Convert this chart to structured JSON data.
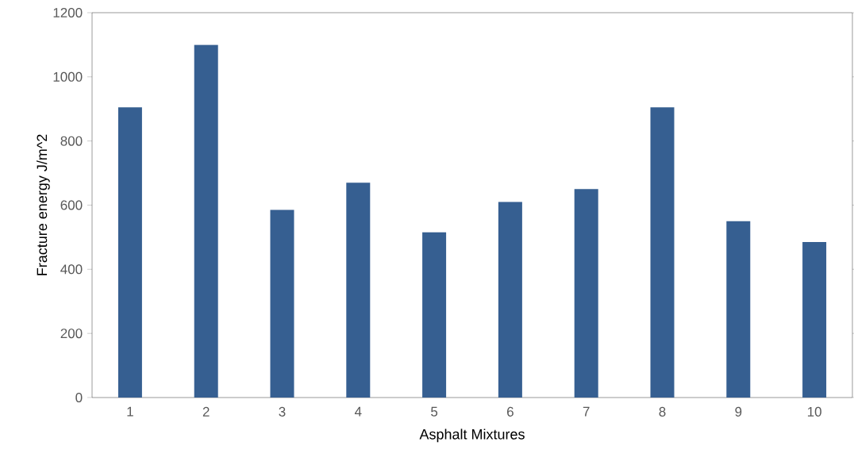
{
  "chart_data": {
    "type": "bar",
    "xlabel": "Asphalt Mixtures",
    "ylabel": "Fracture energy J/m^2",
    "categories": [
      "1",
      "2",
      "3",
      "4",
      "5",
      "6",
      "7",
      "8",
      "9",
      "10"
    ],
    "values": [
      905,
      1100,
      585,
      670,
      515,
      610,
      650,
      905,
      550,
      485
    ],
    "color": "#365f91",
    "ylim": [
      0,
      1200
    ],
    "yticks": [
      0,
      200,
      400,
      600,
      800,
      1000,
      1200
    ],
    "grid": false
  }
}
